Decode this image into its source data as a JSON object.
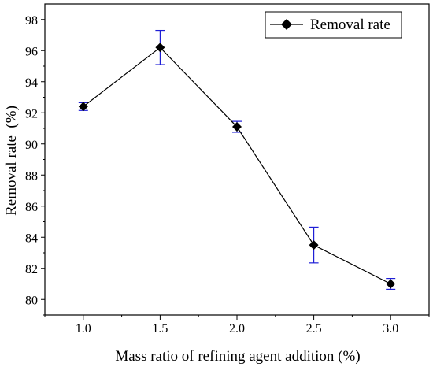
{
  "chart_data": {
    "type": "line",
    "xlabel": "Mass ratio of refining agent addition (%)",
    "ylabel": "Removal rate  (%)",
    "x": [
      1.0,
      1.5,
      2.0,
      2.5,
      3.0
    ],
    "x_tick_labels": [
      "1.0",
      "1.5",
      "2.0",
      "2.5",
      "3.0"
    ],
    "y_tick_values": [
      80,
      82,
      84,
      86,
      88,
      90,
      92,
      94,
      96,
      98
    ],
    "y_tick_labels": [
      "80",
      "82",
      "84",
      "86",
      "88",
      "90",
      "92",
      "94",
      "96",
      "98"
    ],
    "xlim": [
      0.75,
      3.25
    ],
    "ylim": [
      79,
      99
    ],
    "grid": false,
    "legend_position": "top-right",
    "series": [
      {
        "name": "Removal rate",
        "values": [
          92.4,
          96.2,
          91.1,
          83.5,
          81.0
        ],
        "error": [
          0.25,
          1.1,
          0.35,
          1.15,
          0.35
        ],
        "line_color": "#000000",
        "marker": "diamond",
        "marker_color": "#000000",
        "error_bar_color": "#1f1fd6"
      }
    ]
  }
}
